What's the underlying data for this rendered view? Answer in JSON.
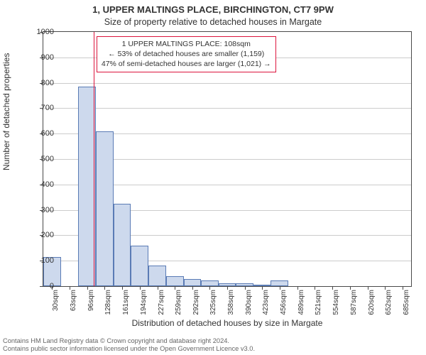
{
  "title": "1, UPPER MALTINGS PLACE, BIRCHINGTON, CT7 9PW",
  "subtitle": "Size of property relative to detached houses in Margate",
  "ylabel": "Number of detached properties",
  "xlabel": "Distribution of detached houses by size in Margate",
  "chart": {
    "type": "histogram",
    "background_color": "#ffffff",
    "border_color": "#494949",
    "grid_color": "#cccccc",
    "bar_fill": "#cdd9ed",
    "bar_stroke": "#5a7bb5",
    "marker_color": "#dc143c",
    "marker_x": 108,
    "x_min": 14,
    "x_max": 701,
    "ylim": [
      0,
      1000
    ],
    "ytick_step": 100,
    "x_ticks": [
      30,
      63,
      96,
      128,
      161,
      194,
      227,
      259,
      292,
      325,
      358,
      390,
      423,
      456,
      489,
      521,
      554,
      587,
      620,
      652,
      685
    ],
    "x_tick_labels": [
      "30sqm",
      "63sqm",
      "96sqm",
      "128sqm",
      "161sqm",
      "194sqm",
      "227sqm",
      "259sqm",
      "292sqm",
      "325sqm",
      "358sqm",
      "390sqm",
      "423sqm",
      "456sqm",
      "489sqm",
      "521sqm",
      "554sqm",
      "587sqm",
      "620sqm",
      "652sqm",
      "685sqm"
    ],
    "bars": [
      {
        "x0": 14,
        "x1": 47,
        "y": 115
      },
      {
        "x0": 47,
        "x1": 79,
        "y": 0
      },
      {
        "x0": 79,
        "x1": 112,
        "y": 785
      },
      {
        "x0": 112,
        "x1": 145,
        "y": 610
      },
      {
        "x0": 145,
        "x1": 177,
        "y": 325
      },
      {
        "x0": 177,
        "x1": 210,
        "y": 160
      },
      {
        "x0": 210,
        "x1": 243,
        "y": 80
      },
      {
        "x0": 243,
        "x1": 276,
        "y": 40
      },
      {
        "x0": 276,
        "x1": 308,
        "y": 28
      },
      {
        "x0": 308,
        "x1": 341,
        "y": 22
      },
      {
        "x0": 341,
        "x1": 374,
        "y": 12
      },
      {
        "x0": 374,
        "x1": 407,
        "y": 12
      },
      {
        "x0": 407,
        "x1": 439,
        "y": 6
      },
      {
        "x0": 439,
        "x1": 472,
        "y": 22
      },
      {
        "x0": 472,
        "x1": 505,
        "y": 0
      },
      {
        "x0": 505,
        "x1": 538,
        "y": 0
      },
      {
        "x0": 538,
        "x1": 570,
        "y": 0
      },
      {
        "x0": 570,
        "x1": 603,
        "y": 0
      },
      {
        "x0": 603,
        "x1": 636,
        "y": 0
      },
      {
        "x0": 636,
        "x1": 669,
        "y": 0
      },
      {
        "x0": 669,
        "x1": 701,
        "y": 0
      }
    ],
    "tick_fontsize": 11,
    "label_fontsize": 12
  },
  "annotation": {
    "line1": "1 UPPER MALTINGS PLACE: 108sqm",
    "line2": "← 53% of detached houses are smaller (1,159)",
    "line3": "47% of semi-detached houses are larger (1,021) →",
    "border_color": "#dc143c",
    "fontsize": 10.5
  },
  "footer": {
    "line1": "Contains HM Land Registry data © Crown copyright and database right 2024.",
    "line2": "Contains public sector information licensed under the Open Government Licence v3.0.",
    "color": "#666666",
    "fontsize": 9.3
  }
}
